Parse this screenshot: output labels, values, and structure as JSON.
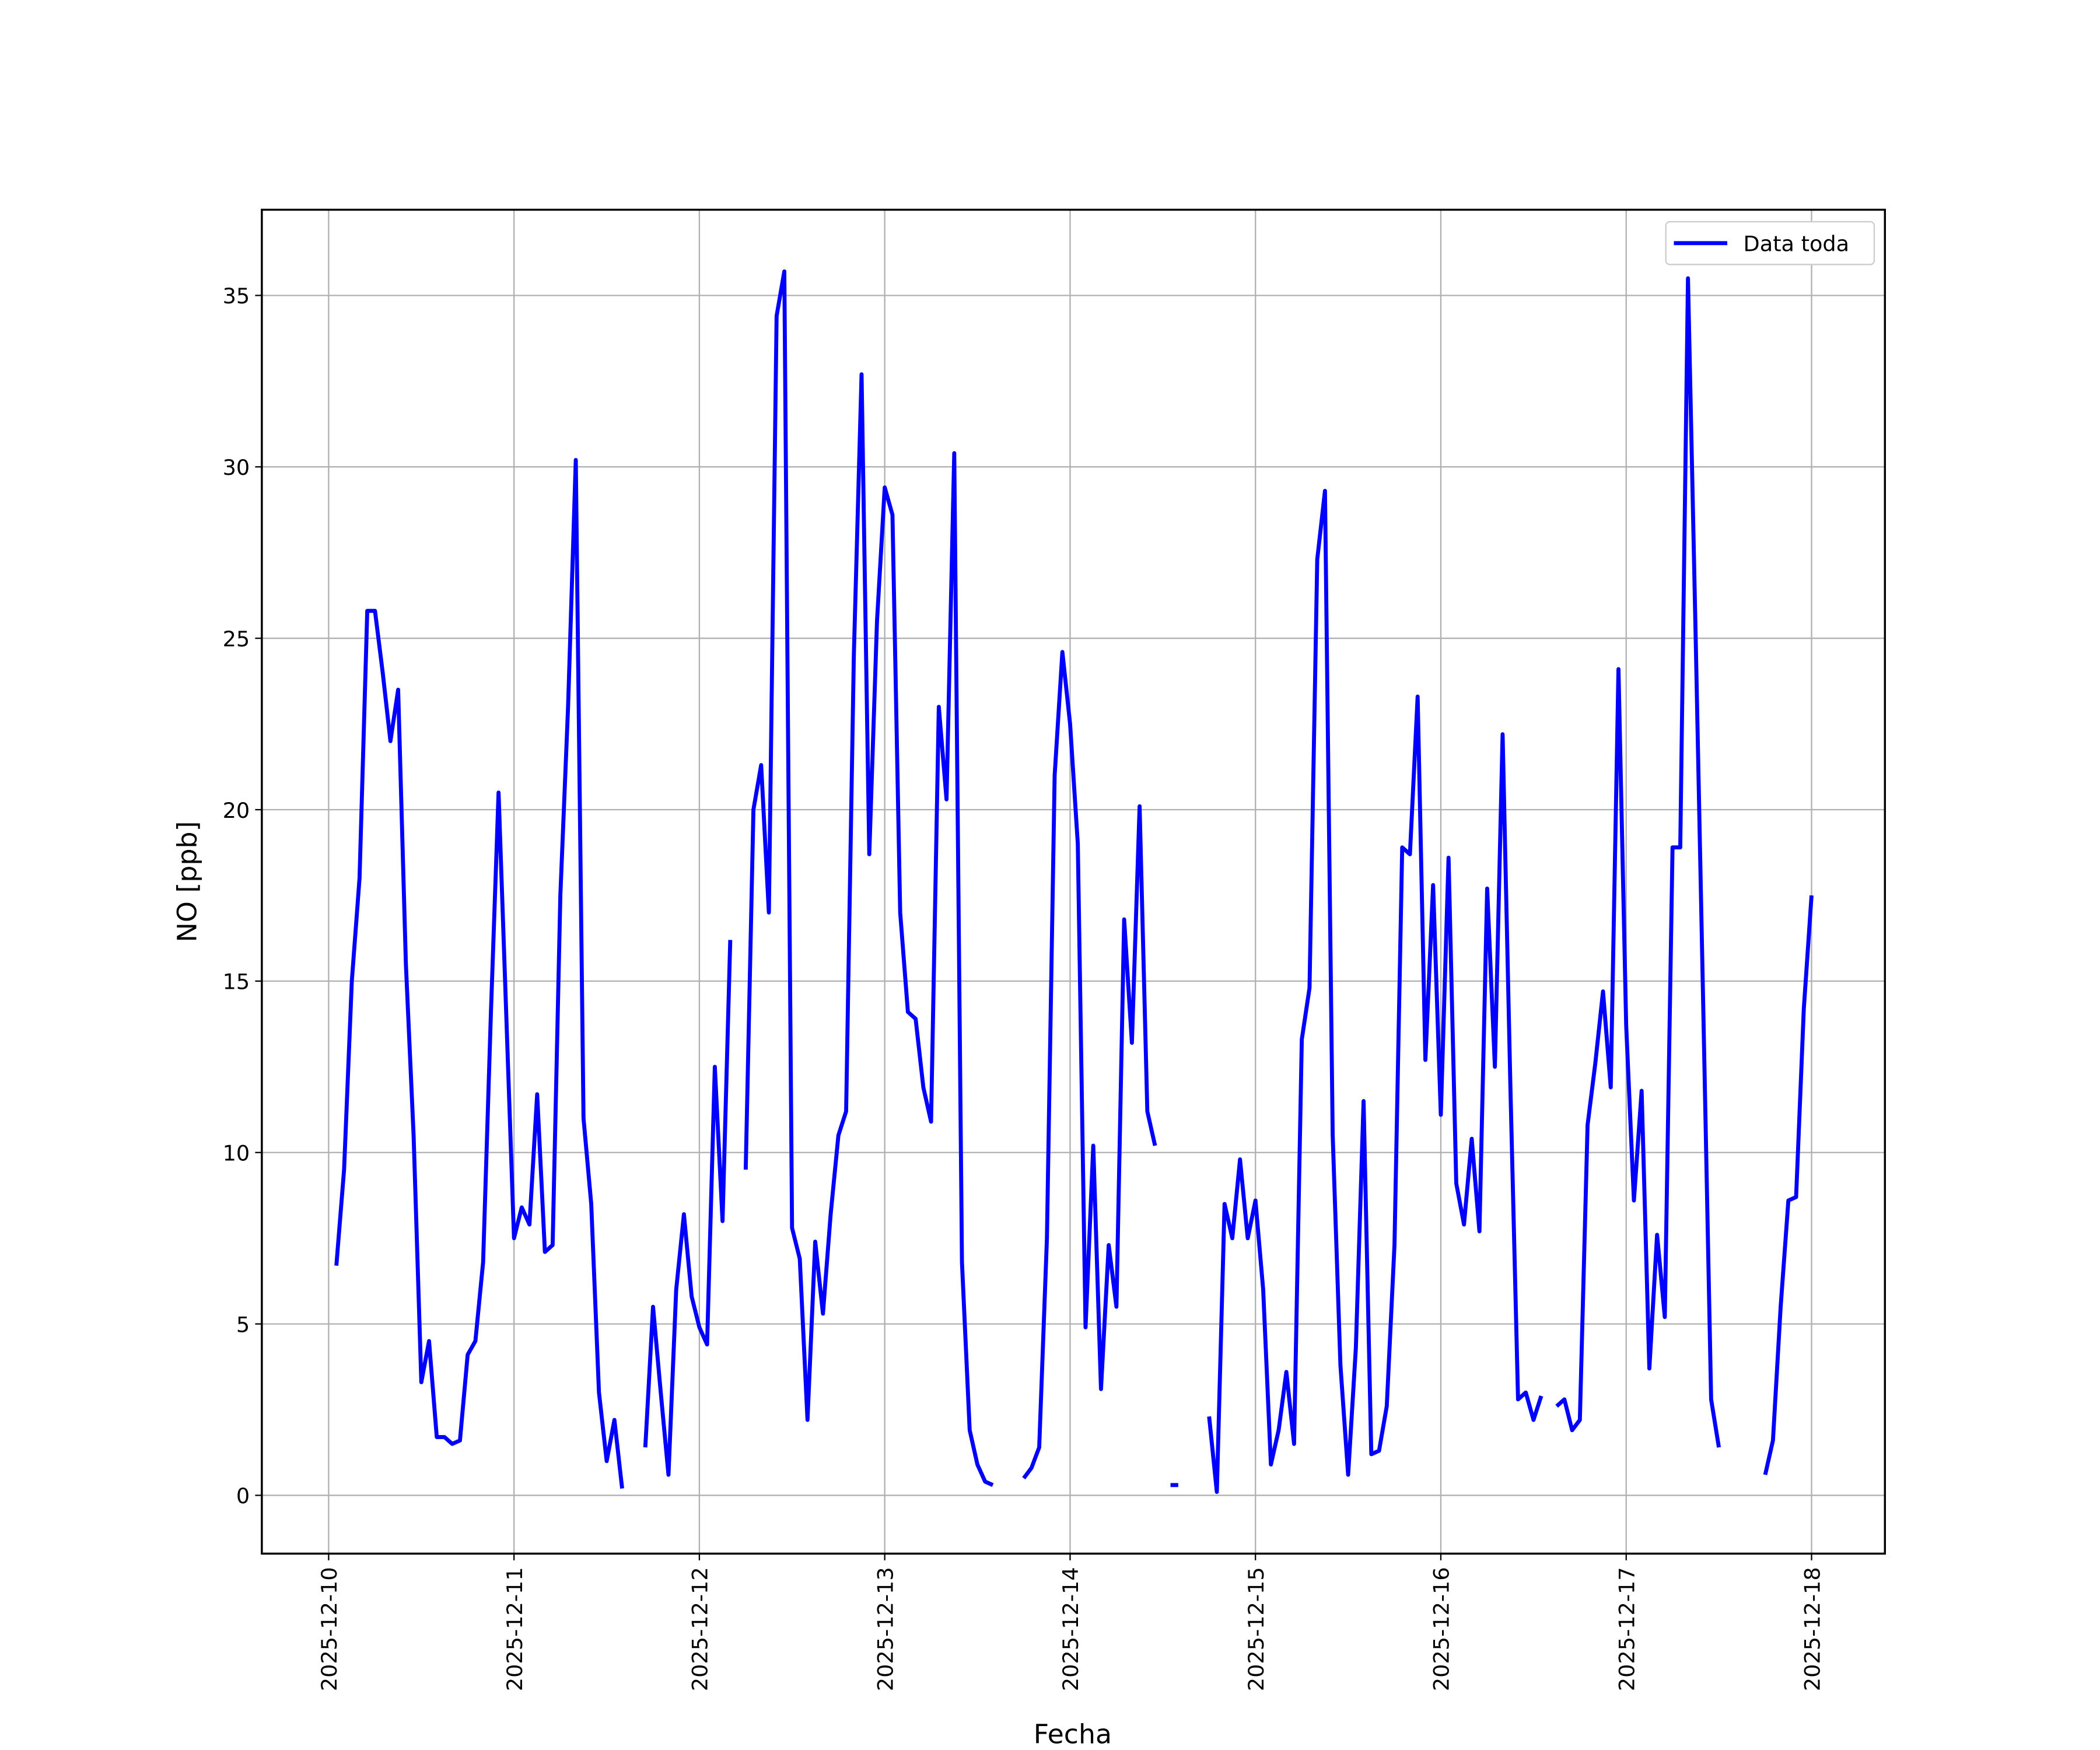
{
  "chart_data": {
    "type": "line",
    "xlabel": "Fecha",
    "ylabel": "NO [ppb]",
    "xlim": [
      "2025-12-09 15:21",
      "2025-12-18 09:30"
    ],
    "xticks": [
      "2025-12-10",
      "2025-12-11",
      "2025-12-12",
      "2025-12-13",
      "2025-12-14",
      "2025-12-15",
      "2025-12-16",
      "2025-12-17",
      "2025-12-18"
    ],
    "ylim": [
      -1.7,
      37.5
    ],
    "yticks": [
      0,
      5,
      10,
      15,
      20,
      25,
      30,
      35
    ],
    "grid": true,
    "legend": "upper right",
    "x": [
      "2025-12-10 01:00",
      "2025-12-10 02:00",
      "2025-12-10 03:00",
      "2025-12-10 04:00",
      "2025-12-10 05:00",
      "2025-12-10 06:00",
      "2025-12-10 07:00",
      "2025-12-10 08:00",
      "2025-12-10 09:00",
      "2025-12-10 10:00",
      "2025-12-10 11:00",
      "2025-12-10 12:00",
      "2025-12-10 13:00",
      "2025-12-10 14:00",
      "2025-12-10 15:00",
      "2025-12-10 16:00",
      "2025-12-10 17:00",
      "2025-12-10 18:00",
      "2025-12-10 19:00",
      "2025-12-10 20:00",
      "2025-12-10 21:00",
      "2025-12-10 22:00",
      "2025-12-10 23:00",
      "2025-12-11 00:00",
      "2025-12-11 01:00",
      "2025-12-11 02:00",
      "2025-12-11 03:00",
      "2025-12-11 04:00",
      "2025-12-11 05:00",
      "2025-12-11 06:00",
      "2025-12-11 07:00",
      "2025-12-11 08:00",
      "2025-12-11 09:00",
      "2025-12-11 10:00",
      "2025-12-11 11:00",
      "2025-12-11 12:00",
      "2025-12-11 13:00",
      "2025-12-11 14:00",
      "2025-12-11 15:00",
      "2025-12-11 17:00",
      "2025-12-11 18:00",
      "2025-12-11 19:00",
      "2025-12-11 20:00",
      "2025-12-11 21:00",
      "2025-12-11 22:00",
      "2025-12-11 23:00",
      "2025-12-12 00:00",
      "2025-12-12 01:00",
      "2025-12-12 02:00",
      "2025-12-12 03:00",
      "2025-12-12 04:00",
      "2025-12-12 05:00",
      "2025-12-12 06:00",
      "2025-12-12 07:00",
      "2025-12-12 08:00",
      "2025-12-12 09:00",
      "2025-12-12 10:00",
      "2025-12-12 11:00",
      "2025-12-12 12:00",
      "2025-12-12 13:00",
      "2025-12-12 14:00",
      "2025-12-12 15:00",
      "2025-12-12 16:00",
      "2025-12-12 17:00",
      "2025-12-12 18:00",
      "2025-12-12 19:00",
      "2025-12-12 20:00",
      "2025-12-12 21:00",
      "2025-12-12 22:00",
      "2025-12-12 23:00",
      "2025-12-13 00:00",
      "2025-12-13 01:00",
      "2025-12-13 02:00",
      "2025-12-13 03:00",
      "2025-12-13 04:00",
      "2025-12-13 05:00",
      "2025-12-13 06:00",
      "2025-12-13 07:00",
      "2025-12-13 08:00",
      "2025-12-13 09:00",
      "2025-12-13 10:00",
      "2025-12-13 11:00",
      "2025-12-13 12:00",
      "2025-12-13 13:00",
      "2025-12-13 14:00",
      "2025-12-13 15:00",
      "2025-12-13 18:00",
      "2025-12-13 19:00",
      "2025-12-13 20:00",
      "2025-12-13 21:00",
      "2025-12-13 22:00",
      "2025-12-13 23:00",
      "2025-12-14 00:00",
      "2025-12-14 01:00",
      "2025-12-14 02:00",
      "2025-12-14 03:00",
      "2025-12-14 04:00",
      "2025-12-14 05:00",
      "2025-12-14 06:00",
      "2025-12-14 07:00",
      "2025-12-14 08:00",
      "2025-12-14 09:00",
      "2025-12-14 10:00",
      "2025-12-14 11:00",
      "2025-12-14 12:00",
      "2025-12-14 13:00",
      "2025-12-14 14:00",
      "2025-12-14 15:00",
      "2025-12-14 18:00",
      "2025-12-14 19:00",
      "2025-12-14 20:00",
      "2025-12-14 21:00",
      "2025-12-14 22:00",
      "2025-12-14 23:00",
      "2025-12-15 00:00",
      "2025-12-15 01:00",
      "2025-12-15 02:00",
      "2025-12-15 03:00",
      "2025-12-15 04:00",
      "2025-12-15 05:00",
      "2025-12-15 06:00",
      "2025-12-15 07:00",
      "2025-12-15 08:00",
      "2025-12-15 09:00",
      "2025-12-15 10:00",
      "2025-12-15 11:00",
      "2025-12-15 12:00",
      "2025-12-15 13:00",
      "2025-12-15 14:00",
      "2025-12-15 15:00",
      "2025-12-15 16:00",
      "2025-12-15 17:00",
      "2025-12-15 18:00",
      "2025-12-15 19:00",
      "2025-12-15 20:00",
      "2025-12-15 21:00",
      "2025-12-15 22:00",
      "2025-12-15 23:00",
      "2025-12-16 00:00",
      "2025-12-16 01:00",
      "2025-12-16 02:00",
      "2025-12-16 03:00",
      "2025-12-16 04:00",
      "2025-12-16 05:00",
      "2025-12-16 06:00",
      "2025-12-16 07:00",
      "2025-12-16 08:00",
      "2025-12-16 09:00",
      "2025-12-16 10:00",
      "2025-12-16 11:00",
      "2025-12-16 12:00",
      "2025-12-16 13:00",
      "2025-12-16 14:00",
      "2025-12-16 15:00",
      "2025-12-16 16:00",
      "2025-12-16 17:00",
      "2025-12-16 18:00",
      "2025-12-16 19:00",
      "2025-12-16 20:00",
      "2025-12-16 21:00",
      "2025-12-16 22:00",
      "2025-12-16 23:00",
      "2025-12-17 00:00",
      "2025-12-17 01:00",
      "2025-12-17 02:00",
      "2025-12-17 03:00",
      "2025-12-17 04:00",
      "2025-12-17 05:00",
      "2025-12-17 06:00",
      "2025-12-17 07:00",
      "2025-12-17 08:00",
      "2025-12-17 09:00",
      "2025-12-17 10:00",
      "2025-12-17 11:00",
      "2025-12-17 12:00",
      "2025-12-17 13:00",
      "2025-12-17 18:00",
      "2025-12-17 19:00",
      "2025-12-17 20:00",
      "2025-12-17 21:00",
      "2025-12-17 22:00",
      "2025-12-17 23:00",
      "2025-12-18 00:00"
    ],
    "series": [
      {
        "name": "Data toda",
        "color": "#0000ff",
        "values": [
          6.7,
          9.5,
          15,
          18,
          25.8,
          25.8,
          24,
          22,
          23.5,
          15.5,
          10.5,
          3.3,
          4.5,
          1.7,
          1.7,
          1.5,
          1.6,
          4.1,
          4.5,
          6.8,
          14,
          20.5,
          14,
          7.5,
          8.4,
          7.9,
          11.7,
          7.1,
          7.3,
          17.5,
          23,
          30.2,
          11,
          8.5,
          3,
          1,
          2.2,
          0.2,
          null,
          1.4,
          5.5,
          3,
          0.6,
          6,
          8.2,
          5.8,
          4.9,
          4.4,
          12.5,
          8,
          16.2,
          null,
          9.5,
          20,
          21.3,
          17,
          34.4,
          35.7,
          7.8,
          6.9,
          2.2,
          7.4,
          5.3,
          8.2,
          10.5,
          11.2,
          24.5,
          32.7,
          18.7,
          25.5,
          29.4,
          28.6,
          17,
          14.1,
          13.9,
          11.9,
          10.9,
          23,
          20.3,
          30.4,
          6.8,
          1.9,
          0.9,
          0.4,
          0.3,
          null,
          0.5,
          0.8,
          1.4,
          7.5,
          21,
          24.6,
          22.5,
          19,
          4.9,
          10.2,
          3.1,
          7.3,
          5.5,
          16.8,
          13.2,
          20.1,
          11.2,
          10.2,
          null,
          0.3,
          0.3,
          null,
          2.3,
          0.1,
          8.5,
          7.5,
          9.8,
          7.5,
          8.6,
          6,
          0.9,
          1.9,
          3.6,
          1.5,
          13.3,
          14.8,
          27.3,
          29.3,
          10.5,
          3.8,
          0.6,
          4.3,
          11.5,
          1.2,
          1.3,
          2.6,
          7.3,
          18.9,
          18.7,
          23.3,
          12.7,
          17.8,
          11.1,
          18.6,
          9.1,
          7.9,
          10.4,
          7.7,
          17.7,
          12.5,
          22.2,
          12,
          2.8,
          3,
          2.2,
          2.9,
          null,
          2.6,
          2.8,
          1.9,
          2.2,
          10.8,
          12.6,
          14.7,
          11.9,
          24.1,
          13.7,
          8.6,
          11.8,
          3.7,
          7.6,
          5.2,
          18.9,
          18.9,
          35.5,
          25,
          14,
          2.8,
          1.4,
          null,
          0.6,
          1.6,
          5.5,
          8.6,
          8.7,
          14.2,
          17.5
        ]
      }
    ]
  }
}
